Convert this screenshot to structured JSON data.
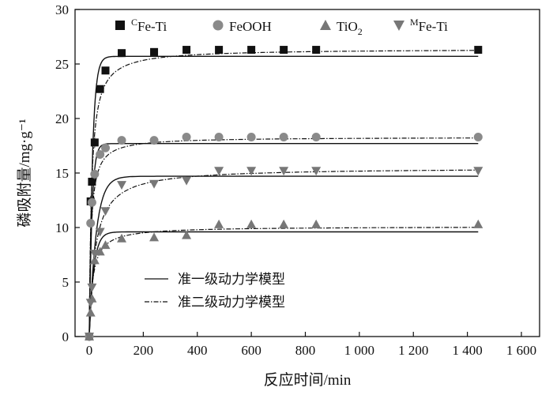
{
  "chart_data": {
    "type": "scatter",
    "xlabel": "反应时间/min",
    "ylabel": "磷吸附量/mg·g⁻¹",
    "xlim": [
      -50,
      1600
    ],
    "ylim": [
      0,
      30
    ],
    "xticks": [
      0,
      200,
      400,
      600,
      800,
      1000,
      1200,
      1400,
      1600
    ],
    "xtick_labels": [
      "0",
      "200",
      "400",
      "600",
      "800",
      "1 000",
      "1 200",
      "1 400",
      "1 600"
    ],
    "yticks": [
      0,
      5,
      10,
      15,
      20,
      25,
      30
    ],
    "ytick_labels": [
      "0",
      "5",
      "10",
      "15",
      "20",
      "25",
      "30"
    ],
    "grid": false,
    "legend_position": "top",
    "series": [
      {
        "name": "CFe-Ti",
        "label_prefix": "",
        "label_sup": "C",
        "label_main": "Fe-Ti",
        "label_sub": "",
        "marker": "square",
        "color": "#111111",
        "x": [
          0,
          5,
          10,
          20,
          40,
          60,
          120,
          240,
          360,
          480,
          600,
          720,
          840,
          1440
        ],
        "y": [
          0,
          12.4,
          14.2,
          17.8,
          22.7,
          24.4,
          26.0,
          26.1,
          26.3,
          26.3,
          26.3,
          26.3,
          26.3,
          26.3
        ],
        "pfo": {
          "qe": 25.7,
          "k": 0.085
        },
        "pso": {
          "qe": 26.4,
          "k": 0.0045
        }
      },
      {
        "name": "FeOOH",
        "label_prefix": "",
        "label_sup": "",
        "label_main": "FeOOH",
        "label_sub": "",
        "marker": "circle",
        "color": "#8a8a8a",
        "x": [
          0,
          5,
          10,
          20,
          40,
          60,
          120,
          240,
          360,
          480,
          600,
          720,
          840,
          1440
        ],
        "y": [
          0,
          10.4,
          12.3,
          14.9,
          16.7,
          17.3,
          18.0,
          18.0,
          18.3,
          18.3,
          18.3,
          18.3,
          18.3,
          18.3
        ],
        "pfo": {
          "qe": 17.7,
          "k": 0.1
        },
        "pso": {
          "qe": 18.3,
          "k": 0.008
        }
      },
      {
        "name": "TiO2",
        "label_prefix": "TiO",
        "label_sup": "",
        "label_main": "TiO",
        "label_sub": "2",
        "marker": "triangle-up",
        "color": "#777777",
        "x": [
          0,
          5,
          10,
          20,
          40,
          60,
          120,
          240,
          360,
          480,
          600,
          720,
          840,
          1440
        ],
        "y": [
          0,
          2.2,
          3.5,
          7.0,
          7.8,
          8.4,
          9.0,
          9.1,
          9.3,
          10.3,
          10.3,
          10.3,
          10.3,
          10.3
        ],
        "pfo": {
          "qe": 9.6,
          "k": 0.06
        },
        "pso": {
          "qe": 10.1,
          "k": 0.008
        }
      },
      {
        "name": "MFe-Ti",
        "label_prefix": "",
        "label_sup": "M",
        "label_main": "Fe-Ti",
        "label_sub": "",
        "marker": "triangle-down",
        "color": "#777777",
        "x": [
          0,
          5,
          10,
          20,
          40,
          60,
          120,
          240,
          360,
          480,
          600,
          720,
          840,
          1440
        ],
        "y": [
          0,
          3.1,
          4.5,
          7.6,
          9.6,
          11.5,
          13.9,
          14.0,
          14.3,
          15.2,
          15.2,
          15.2,
          15.2,
          15.2
        ],
        "pfo": {
          "qe": 14.7,
          "k": 0.04
        },
        "pso": {
          "qe": 15.5,
          "k": 0.003
        }
      }
    ],
    "fit_legend": [
      {
        "label": "准一级动力学模型",
        "style": "solid"
      },
      {
        "label": "准二级动力学模型",
        "style": "dash-dot"
      }
    ]
  }
}
